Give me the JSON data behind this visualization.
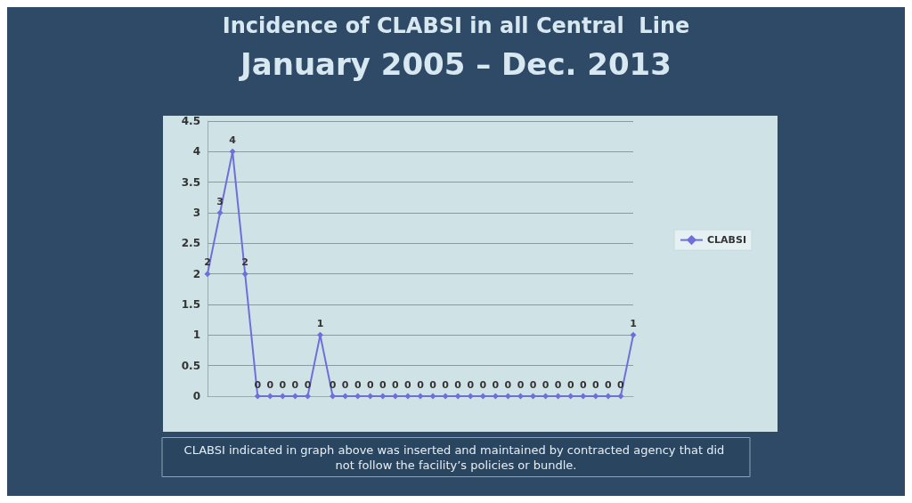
{
  "chart_data": {
    "type": "line",
    "title": "Incidence of CLABSI in all Central  Line",
    "subtitle": "January 2005 – Dec. 2013",
    "categories": [
      null,
      null,
      null,
      null,
      null,
      null,
      null,
      null,
      null,
      null,
      null,
      null,
      null,
      null,
      null,
      null,
      null,
      null,
      null,
      null,
      null,
      null,
      null,
      null,
      null,
      null,
      null,
      null,
      null,
      null,
      null,
      null,
      null,
      null,
      null
    ],
    "series": [
      {
        "name": "CLABSI",
        "color": "#6f6fd8",
        "values": [
          2,
          3,
          4,
          2,
          0,
          0,
          0,
          0,
          0,
          1,
          0,
          0,
          0,
          0,
          0,
          0,
          0,
          0,
          0,
          0,
          0,
          0,
          0,
          0,
          0,
          0,
          0,
          0,
          0,
          0,
          0,
          0,
          0,
          0,
          1
        ]
      }
    ],
    "ylim": [
      0,
      4.5
    ],
    "yticks": [
      0,
      0.5,
      1,
      1.5,
      2,
      2.5,
      3,
      3.5,
      4,
      4.5
    ],
    "grid": "y",
    "legend": "right",
    "marker": "diamond",
    "data_labels": true,
    "annotations": [
      "CLABSI indicated in graph above was inserted and maintained by contracted agency that did not follow the facility’s policies or bundle."
    ]
  }
}
